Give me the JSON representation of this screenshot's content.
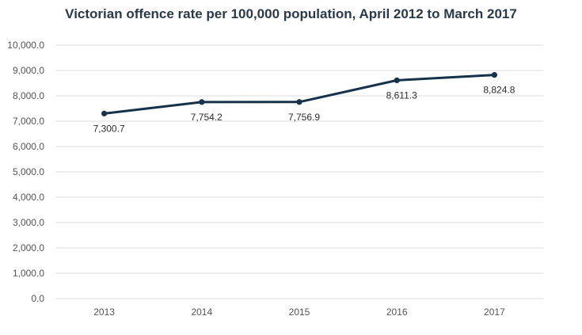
{
  "chart_data": {
    "type": "line",
    "title": "Victorian offence rate per 100,000 population, April 2012 to March 2017",
    "categories": [
      "2013",
      "2014",
      "2015",
      "2016",
      "2017"
    ],
    "series": [
      {
        "values": [
          7300.7,
          7754.2,
          7756.9,
          8611.3,
          8824.8
        ]
      }
    ],
    "value_labels": [
      "7,300.7",
      "7,754.2",
      "7,756.9",
      "8,611.3",
      "8,824.8"
    ],
    "ylim": [
      0,
      10000
    ],
    "yticks": [
      0,
      1000,
      2000,
      3000,
      4000,
      5000,
      6000,
      7000,
      8000,
      9000,
      10000
    ],
    "ytick_labels": [
      "0.0",
      "1,000.0",
      "2,000.0",
      "3,000.0",
      "4,000.0",
      "5,000.0",
      "6,000.0",
      "7,000.0",
      "8,000.0",
      "9,000.0",
      "10,000.0"
    ],
    "xlabel": "",
    "ylabel": "",
    "grid": true,
    "legend": "none",
    "color": "#16324a"
  }
}
